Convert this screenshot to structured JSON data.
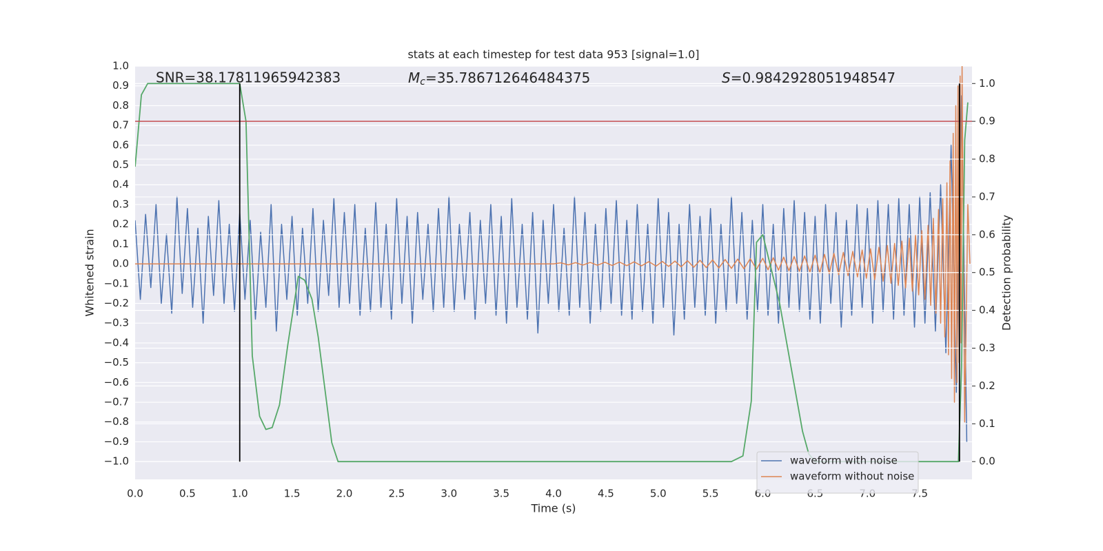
{
  "chart_data": {
    "type": "line",
    "title": "stats at each timestep for test data 953 [signal=1.0]",
    "x_label": "Time (s)",
    "y_label": "Whitened strain",
    "y2_label": "Detection probability",
    "annotations": [
      {
        "text": "SNR=38.17811965942383"
      },
      {
        "symbol": "M",
        "subscript": "c",
        "text": "=35.786712646484375"
      },
      {
        "symbol": "S",
        "text": "=0.9842928051948547"
      }
    ],
    "xlim": [
      0,
      8
    ],
    "ylim": [
      -1.09,
      1.0
    ],
    "y2lim": [
      -0.047,
      1.046
    ],
    "xticks": [
      {
        "value": 0,
        "label": "0.0"
      },
      0.5,
      {
        "value": 1,
        "label": "1.0"
      },
      1.5,
      {
        "value": 2,
        "label": "2.0"
      },
      2.5,
      {
        "value": 3,
        "label": "3.0"
      },
      3.5,
      {
        "value": 4,
        "label": "4.0"
      },
      4.5,
      {
        "value": 5,
        "label": "5.0"
      },
      5.5,
      {
        "value": 6,
        "label": "6.0"
      },
      6.5,
      {
        "value": 7,
        "label": "7.0"
      },
      7.5
    ],
    "yticks": [
      {
        "value": -1,
        "label": "−1.0"
      },
      {
        "value": -0.9,
        "label": "−0.9"
      },
      {
        "value": -0.8,
        "label": "−0.8"
      },
      {
        "value": -0.7,
        "label": "−0.7"
      },
      {
        "value": -0.6,
        "label": "−0.6"
      },
      {
        "value": -0.5,
        "label": "−0.5"
      },
      {
        "value": -0.4,
        "label": "−0.4"
      },
      {
        "value": -0.3,
        "label": "−0.3"
      },
      {
        "value": -0.2,
        "label": "−0.2"
      },
      {
        "value": -0.1,
        "label": "−0.1"
      },
      {
        "value": 0,
        "label": "0.0"
      },
      0.1,
      0.2,
      0.3,
      0.4,
      0.5,
      0.6,
      0.7,
      0.8,
      0.9,
      {
        "value": 1,
        "label": "1.0"
      }
    ],
    "y2ticks": [
      {
        "value": 0,
        "label": "0.0"
      },
      0.1,
      0.2,
      0.3,
      0.4,
      0.5,
      0.6,
      0.7,
      0.8,
      0.9,
      {
        "value": 1,
        "label": "1.0"
      }
    ],
    "grid": true,
    "legend": "lower right",
    "threshold": {
      "value": 0.9,
      "axis": "y2",
      "color": "#c44e52"
    },
    "vlines": {
      "values": [
        1.0,
        7.88
      ],
      "color": "#000000"
    },
    "series": [
      {
        "name": "waveform with noise",
        "color": "#4c72b0",
        "x": [
          0,
          0.05,
          0.1,
          0.15,
          0.2,
          0.25,
          0.3,
          0.35,
          0.4,
          0.45,
          0.5,
          0.55,
          0.6,
          0.65,
          0.7,
          0.75,
          0.8,
          0.85,
          0.9,
          0.95,
          1,
          1.05,
          1.1,
          1.15,
          1.2,
          1.25,
          1.3,
          1.35,
          1.4,
          1.45,
          1.5,
          1.55,
          1.6,
          1.65,
          1.7,
          1.75,
          1.8,
          1.85,
          1.9,
          1.95,
          2,
          2.05,
          2.1,
          2.15,
          2.2,
          2.25,
          2.3,
          2.35,
          2.4,
          2.45,
          2.5,
          2.55,
          2.6,
          2.65,
          2.7,
          2.75,
          2.8,
          2.85,
          2.9,
          2.95,
          3,
          3.05,
          3.1,
          3.15,
          3.2,
          3.25,
          3.3,
          3.35,
          3.4,
          3.45,
          3.5,
          3.55,
          3.6,
          3.65,
          3.7,
          3.75,
          3.8,
          3.85,
          3.9,
          3.95,
          4,
          4.05,
          4.1,
          4.15,
          4.2,
          4.25,
          4.3,
          4.35,
          4.4,
          4.45,
          4.5,
          4.55,
          4.6,
          4.65,
          4.7,
          4.75,
          4.8,
          4.85,
          4.9,
          4.95,
          5,
          5.05,
          5.1,
          5.15,
          5.2,
          5.25,
          5.3,
          5.35,
          5.4,
          5.45,
          5.5,
          5.55,
          5.6,
          5.65,
          5.7,
          5.75,
          5.8,
          5.85,
          5.9,
          5.95,
          6,
          6.05,
          6.1,
          6.15,
          6.2,
          6.25,
          6.3,
          6.35,
          6.4,
          6.45,
          6.5,
          6.55,
          6.6,
          6.65,
          6.7,
          6.75,
          6.8,
          6.85,
          6.9,
          6.95,
          7,
          7.05,
          7.1,
          7.15,
          7.2,
          7.25,
          7.3,
          7.35,
          7.4,
          7.45,
          7.5,
          7.55,
          7.6,
          7.65,
          7.7,
          7.75,
          7.8,
          7.85,
          7.9,
          7.95
        ],
        "values": [
          0.22,
          -0.18,
          0.25,
          -0.12,
          0.3,
          -0.2,
          0.15,
          -0.25,
          0.34,
          -0.15,
          0.28,
          -0.22,
          0.18,
          -0.3,
          0.24,
          -0.16,
          0.32,
          -0.2,
          0.2,
          -0.24,
          0.26,
          -0.18,
          0.22,
          -0.28,
          0.16,
          -0.22,
          0.3,
          -0.34,
          0.2,
          -0.18,
          0.24,
          -0.26,
          0.18,
          -0.2,
          0.28,
          -0.24,
          0.22,
          -0.16,
          0.33,
          -0.22,
          0.26,
          -0.2,
          0.3,
          -0.26,
          0.18,
          -0.24,
          0.31,
          -0.22,
          0.2,
          -0.28,
          0.33,
          -0.2,
          0.24,
          -0.3,
          0.26,
          -0.18,
          0.2,
          -0.24,
          0.28,
          -0.22,
          0.34,
          -0.24,
          0.2,
          -0.18,
          0.26,
          -0.28,
          0.22,
          -0.2,
          0.3,
          -0.26,
          0.24,
          -0.3,
          0.33,
          -0.22,
          0.2,
          -0.28,
          0.26,
          -0.35,
          0.22,
          -0.2,
          0.3,
          -0.24,
          0.18,
          -0.26,
          0.34,
          -0.22,
          0.26,
          -0.3,
          0.2,
          -0.24,
          0.28,
          -0.2,
          0.32,
          -0.26,
          0.22,
          -0.28,
          0.3,
          -0.24,
          0.2,
          -0.3,
          0.33,
          -0.22,
          0.26,
          -0.36,
          0.2,
          -0.28,
          0.3,
          -0.22,
          0.24,
          -0.26,
          0.28,
          -0.3,
          0.2,
          -0.24,
          0.34,
          -0.2,
          0.26,
          -0.28,
          0.22,
          -0.24,
          0.3,
          -0.26,
          0.2,
          -0.3,
          0.28,
          -0.22,
          0.32,
          -0.24,
          0.26,
          -0.28,
          0.24,
          -0.3,
          0.3,
          -0.2,
          0.26,
          -0.32,
          0.22,
          -0.26,
          0.3,
          -0.22,
          0.28,
          -0.3,
          0.32,
          -0.24,
          0.3,
          -0.28,
          0.33,
          -0.26,
          0.3,
          -0.32,
          0.34,
          -0.3,
          0.36,
          -0.34,
          0.4,
          -0.45,
          0.6,
          -0.65,
          0.85,
          -0.9
        ]
      },
      {
        "name": "waveform without noise",
        "color": "#dd8452",
        "x": [
          0,
          4.0,
          4.07,
          4.14,
          4.21,
          4.28,
          4.35,
          4.42,
          4.49,
          4.56,
          4.63,
          4.7,
          4.77,
          4.84,
          4.91,
          4.98,
          5.04,
          5.1,
          5.16,
          5.22,
          5.28,
          5.34,
          5.4,
          5.46,
          5.52,
          5.58,
          5.64,
          5.7,
          5.76,
          5.82,
          5.88,
          5.94,
          6.0,
          6.05,
          6.1,
          6.15,
          6.2,
          6.25,
          6.3,
          6.35,
          6.4,
          6.45,
          6.5,
          6.545,
          6.59,
          6.635,
          6.68,
          6.725,
          6.77,
          6.815,
          6.86,
          6.905,
          6.95,
          6.99,
          7.03,
          7.07,
          7.11,
          7.15,
          7.19,
          7.225,
          7.26,
          7.295,
          7.33,
          7.365,
          7.4,
          7.43,
          7.46,
          7.49,
          7.52,
          7.55,
          7.58,
          7.605,
          7.63,
          7.655,
          7.68,
          7.7,
          7.72,
          7.74,
          7.76,
          7.775,
          7.79,
          7.805,
          7.82,
          7.832,
          7.845,
          7.856,
          7.866,
          7.876,
          7.886,
          7.895,
          7.905,
          7.93,
          7.96,
          7.98
        ],
        "values": [
          0,
          0,
          0.005,
          -0.005,
          0.006,
          -0.006,
          0.007,
          -0.007,
          0.008,
          -0.008,
          0.009,
          -0.009,
          0.01,
          -0.01,
          0.011,
          -0.011,
          0.012,
          -0.013,
          0.014,
          -0.015,
          0.016,
          -0.017,
          0.018,
          -0.019,
          0.02,
          -0.021,
          0.022,
          -0.023,
          0.024,
          -0.025,
          0.026,
          -0.027,
          0.028,
          -0.03,
          0.031,
          -0.032,
          0.034,
          -0.035,
          0.037,
          -0.038,
          0.04,
          -0.042,
          0.044,
          -0.046,
          0.048,
          -0.05,
          0.053,
          -0.055,
          0.058,
          -0.06,
          0.063,
          -0.066,
          0.07,
          -0.073,
          0.076,
          -0.08,
          0.084,
          -0.088,
          0.093,
          -0.098,
          0.103,
          -0.109,
          0.115,
          -0.122,
          0.13,
          -0.138,
          0.147,
          -0.157,
          0.168,
          -0.18,
          0.195,
          -0.21,
          0.23,
          -0.25,
          0.275,
          -0.3,
          0.33,
          -0.37,
          0.41,
          -0.46,
          0.52,
          -0.58,
          0.66,
          -0.7,
          0.8,
          -0.6,
          0.9,
          -0.5,
          0.95,
          -0.4,
          1.0,
          -0.8,
          0.3,
          0
        ]
      },
      {
        "color": "#55a868",
        "axis": "y2",
        "x": [
          0,
          0.06,
          0.12,
          1.0,
          1.06,
          1.12,
          1.19,
          1.25,
          1.31,
          1.38,
          1.46,
          1.56,
          1.62,
          1.69,
          1.75,
          1.88,
          1.94,
          2.0,
          5.7,
          5.81,
          5.89,
          5.94,
          6.0,
          6.16,
          6.38,
          6.44,
          6.5,
          7.87,
          7.9,
          7.93,
          7.96
        ],
        "values": [
          0.78,
          0.97,
          1.0,
          1.0,
          0.9,
          0.28,
          0.12,
          0.085,
          0.09,
          0.15,
          0.31,
          0.49,
          0.48,
          0.43,
          0.33,
          0.05,
          0.0,
          0.0,
          0.0,
          0.015,
          0.16,
          0.58,
          0.6,
          0.42,
          0.08,
          0.02,
          0.0,
          0.0,
          0.25,
          0.85,
          0.95
        ]
      }
    ]
  }
}
